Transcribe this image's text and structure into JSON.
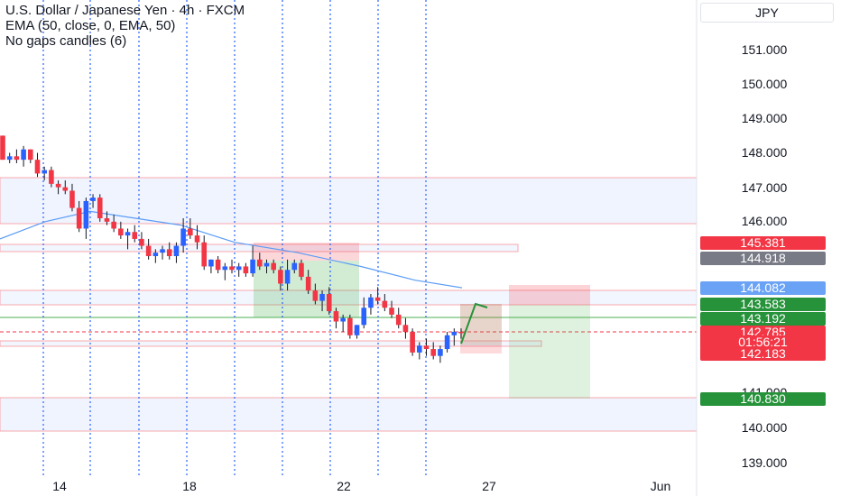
{
  "header": {
    "title": "U.S. Dollar / Japanese Yen · 4h · FXCM",
    "indicator": "EMA (50, close, 0, EMA, 50)",
    "indicator2": "No gaps candles (6)"
  },
  "currency": "JPY",
  "price_axis": {
    "ticks": [
      "151.000",
      "150.000",
      "149.000",
      "148.000",
      "147.000",
      "146.000",
      "141.000",
      "140.000",
      "139.000"
    ]
  },
  "date_axis": {
    "ticks": [
      "14",
      "18",
      "22",
      "27",
      "Jun"
    ]
  },
  "price_tags": {
    "t1": {
      "label": "145.381",
      "color": "#f23645"
    },
    "t2": {
      "label": "144.918",
      "color": "#787b86"
    },
    "t3": {
      "label": "144.082",
      "color": "#6aa3f5"
    },
    "t4": {
      "label": "143.583",
      "color": "#26923a"
    },
    "t5": {
      "label": "143.192",
      "color": "#26923a"
    },
    "t6": {
      "label": "142.785",
      "color": "#f23645"
    },
    "t6b": {
      "label": "01:56:21",
      "color": "#f23645"
    },
    "t7": {
      "label": "142.183",
      "color": "#f23645"
    },
    "t8": {
      "label": "140.830",
      "color": "#26923a"
    }
  },
  "chart_data": {
    "type": "candlestick",
    "symbol": "USDJPY",
    "timeframe": "4h",
    "ylim": [
      138.7,
      151.6
    ],
    "up_color": "#2962ff",
    "down_color": "#f23645",
    "ema_color": "#5b9cf6",
    "candles": [
      [
        148.5,
        148.5,
        147.8,
        147.8
      ],
      [
        147.8,
        148.0,
        147.7,
        147.9
      ],
      [
        147.9,
        148.1,
        147.7,
        147.8
      ],
      [
        147.8,
        148.2,
        147.6,
        148.1
      ],
      [
        148.1,
        148.1,
        147.7,
        147.8
      ],
      [
        147.8,
        148.0,
        147.3,
        147.4
      ],
      [
        147.4,
        147.6,
        147.2,
        147.5
      ],
      [
        147.5,
        147.6,
        147.0,
        147.1
      ],
      [
        147.1,
        147.2,
        146.8,
        147.0
      ],
      [
        147.0,
        147.2,
        146.8,
        146.9
      ],
      [
        146.9,
        147.1,
        146.3,
        146.4
      ],
      [
        146.4,
        146.6,
        145.7,
        145.8
      ],
      [
        145.8,
        146.7,
        145.5,
        146.6
      ],
      [
        146.6,
        146.8,
        146.4,
        146.7
      ],
      [
        146.7,
        146.8,
        146.0,
        146.1
      ],
      [
        146.1,
        146.3,
        145.9,
        146.0
      ],
      [
        146.0,
        146.2,
        145.7,
        145.8
      ],
      [
        145.8,
        146.0,
        145.5,
        145.6
      ],
      [
        145.6,
        145.8,
        145.2,
        145.7
      ],
      [
        145.7,
        145.9,
        145.4,
        145.5
      ],
      [
        145.5,
        145.7,
        145.2,
        145.3
      ],
      [
        145.3,
        145.5,
        144.9,
        145.0
      ],
      [
        145.0,
        145.2,
        144.8,
        145.1
      ],
      [
        145.1,
        145.3,
        144.9,
        145.2
      ],
      [
        145.2,
        145.4,
        144.9,
        145.0
      ],
      [
        145.0,
        145.4,
        144.8,
        145.3
      ],
      [
        145.3,
        146.1,
        145.1,
        145.8
      ],
      [
        145.8,
        146.1,
        145.5,
        145.6
      ],
      [
        145.6,
        145.9,
        145.2,
        145.4
      ],
      [
        145.4,
        145.6,
        144.6,
        144.7
      ],
      [
        144.7,
        144.9,
        144.5,
        144.9
      ],
      [
        144.9,
        145.0,
        144.5,
        144.6
      ],
      [
        144.6,
        144.8,
        144.3,
        144.7
      ],
      [
        144.7,
        144.9,
        144.5,
        144.6
      ],
      [
        144.6,
        144.8,
        144.4,
        144.7
      ],
      [
        144.7,
        144.8,
        144.4,
        144.5
      ],
      [
        144.5,
        145.3,
        144.4,
        144.9
      ],
      [
        144.9,
        145.1,
        144.6,
        144.7
      ],
      [
        144.7,
        144.9,
        144.5,
        144.8
      ],
      [
        144.8,
        144.9,
        144.5,
        144.6
      ],
      [
        144.6,
        144.7,
        144.0,
        144.2
      ],
      [
        144.2,
        144.9,
        144.0,
        144.6
      ],
      [
        144.6,
        144.9,
        144.5,
        144.8
      ],
      [
        144.8,
        144.9,
        144.3,
        144.4
      ],
      [
        144.4,
        144.6,
        143.9,
        144.0
      ],
      [
        144.0,
        144.2,
        143.6,
        143.7
      ],
      [
        143.7,
        144.0,
        143.4,
        143.9
      ],
      [
        143.9,
        144.1,
        143.3,
        143.4
      ],
      [
        143.4,
        143.5,
        142.9,
        143.1
      ],
      [
        143.1,
        143.3,
        142.8,
        143.2
      ],
      [
        143.2,
        143.3,
        142.6,
        142.7
      ],
      [
        142.7,
        143.0,
        142.6,
        143.0
      ],
      [
        143.0,
        143.8,
        142.9,
        143.5
      ],
      [
        143.5,
        143.9,
        143.3,
        143.8
      ],
      [
        143.8,
        144.1,
        143.6,
        143.7
      ],
      [
        143.7,
        143.9,
        143.4,
        143.5
      ],
      [
        143.5,
        143.7,
        143.2,
        143.3
      ],
      [
        143.3,
        143.5,
        142.9,
        143.0
      ],
      [
        143.0,
        143.2,
        142.6,
        142.8
      ],
      [
        142.8,
        142.9,
        142.1,
        142.2
      ],
      [
        142.2,
        142.5,
        142.0,
        142.4
      ],
      [
        142.4,
        142.6,
        142.1,
        142.3
      ],
      [
        142.3,
        142.5,
        142.0,
        142.1
      ],
      [
        142.1,
        142.4,
        141.9,
        142.3
      ],
      [
        142.3,
        142.8,
        142.2,
        142.7
      ],
      [
        142.7,
        142.9,
        142.4,
        142.8
      ],
      [
        142.8,
        142.9,
        142.6,
        142.78
      ]
    ],
    "ema": [
      [
        0,
        145.5
      ],
      [
        50,
        146.0
      ],
      [
        100,
        146.3
      ],
      [
        200,
        145.9
      ],
      [
        260,
        145.4
      ],
      [
        330,
        145.1
      ],
      [
        400,
        144.7
      ],
      [
        460,
        144.3
      ],
      [
        512,
        144.08
      ]
    ]
  }
}
